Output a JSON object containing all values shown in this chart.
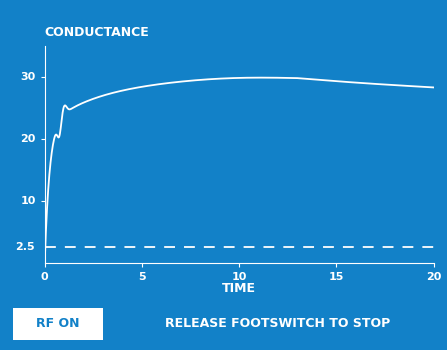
{
  "bg_color": "#1281C8",
  "line_color": "#FFFFFF",
  "dashed_color": "#FFFFFF",
  "text_color": "#FFFFFF",
  "button_color": "#FFFFFF",
  "button_text_color": "#1281C8",
  "bottom_text_color": "#FFFFFF",
  "title": "CONDUCTANCE",
  "xlabel": "TIME",
  "xlim": [
    0,
    20
  ],
  "ylim": [
    0,
    35
  ],
  "yticks": [
    10,
    20,
    30
  ],
  "ytick_labels": [
    "10",
    "20",
    "30"
  ],
  "xticks": [
    0,
    5,
    10,
    15,
    20
  ],
  "dashed_y": 2.5,
  "dashed_y_label": "2.5",
  "rf_on_label": "RF ON",
  "bottom_label": "RELEASE FOOTSWITCH TO STOP",
  "title_fontsize": 9,
  "axis_label_fontsize": 9,
  "tick_fontsize": 8,
  "bottom_fontsize": 9,
  "rf_fontsize": 9
}
